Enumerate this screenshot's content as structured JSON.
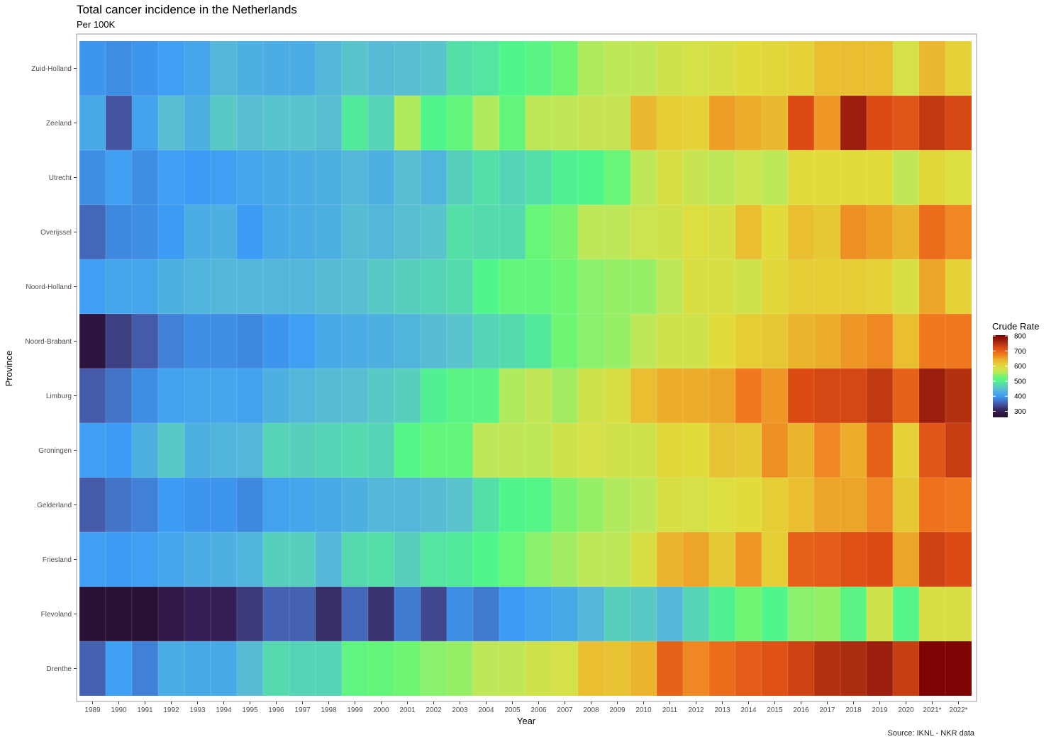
{
  "chart_data": {
    "type": "heatmap",
    "title": "Total cancer incidence in the Netherlands",
    "subtitle": "Per 100K",
    "xlabel": "Year",
    "ylabel": "Province",
    "caption": "Source: IKNL - NKR data",
    "legend": {
      "title": "Crude Rate",
      "position": "right",
      "ticks": [
        300,
        400,
        500,
        600,
        700,
        800
      ],
      "min": 260,
      "max": 805
    },
    "x": [
      "1989",
      "1990",
      "1991",
      "1992",
      "1993",
      "1994",
      "1995",
      "1996",
      "1997",
      "1998",
      "1999",
      "2000",
      "2001",
      "2002",
      "2003",
      "2004",
      "2005",
      "2006",
      "2007",
      "2008",
      "2009",
      "2010",
      "2011",
      "2012",
      "2013",
      "2014",
      "2015",
      "2016",
      "2017",
      "2018",
      "2019",
      "2020",
      "2021*",
      "2022*"
    ],
    "y": [
      "Zuid-Holland",
      "Zeeland",
      "Utrecht",
      "Overijssel",
      "Noord-Holland",
      "Noord-Brabant",
      "Limburg",
      "Groningen",
      "Gelderland",
      "Friesland",
      "Flevoland",
      "Drenthe"
    ],
    "values": [
      [
        395,
        390,
        395,
        405,
        415,
        440,
        430,
        425,
        425,
        440,
        455,
        445,
        450,
        455,
        480,
        485,
        500,
        510,
        530,
        555,
        560,
        565,
        580,
        585,
        590,
        600,
        605,
        610,
        630,
        630,
        630,
        585,
        635,
        610
      ],
      [
        420,
        345,
        410,
        450,
        430,
        460,
        450,
        455,
        455,
        450,
        490,
        470,
        555,
        500,
        520,
        555,
        520,
        560,
        565,
        570,
        570,
        635,
        615,
        610,
        655,
        645,
        635,
        720,
        660,
        770,
        720,
        710,
        740,
        725
      ],
      [
        390,
        405,
        390,
        405,
        400,
        405,
        415,
        420,
        425,
        430,
        440,
        430,
        450,
        435,
        465,
        480,
        470,
        480,
        495,
        500,
        525,
        560,
        590,
        570,
        560,
        575,
        560,
        600,
        600,
        600,
        600,
        565,
        605,
        595
      ],
      [
        360,
        385,
        390,
        400,
        425,
        430,
        400,
        420,
        425,
        430,
        445,
        440,
        450,
        455,
        480,
        475,
        475,
        525,
        535,
        560,
        560,
        575,
        580,
        595,
        590,
        630,
        600,
        630,
        620,
        665,
        655,
        640,
        690,
        670
      ],
      [
        405,
        415,
        415,
        430,
        435,
        440,
        440,
        440,
        440,
        445,
        450,
        460,
        465,
        470,
        475,
        500,
        520,
        520,
        530,
        540,
        545,
        545,
        560,
        590,
        590,
        580,
        605,
        615,
        615,
        615,
        610,
        590,
        650,
        610
      ],
      [
        280,
        330,
        350,
        380,
        390,
        390,
        385,
        395,
        405,
        420,
        425,
        430,
        435,
        445,
        455,
        470,
        475,
        490,
        530,
        540,
        545,
        560,
        580,
        580,
        600,
        615,
        620,
        640,
        645,
        660,
        670,
        630,
        680,
        680
      ],
      [
        350,
        370,
        390,
        410,
        415,
        415,
        410,
        430,
        440,
        445,
        450,
        460,
        465,
        495,
        510,
        510,
        555,
        565,
        550,
        580,
        590,
        630,
        645,
        645,
        650,
        680,
        660,
        720,
        725,
        725,
        740,
        700,
        770,
        750
      ],
      [
        405,
        400,
        430,
        460,
        430,
        435,
        440,
        470,
        465,
        470,
        475,
        470,
        505,
        520,
        520,
        560,
        565,
        560,
        580,
        585,
        580,
        580,
        605,
        600,
        625,
        620,
        665,
        640,
        670,
        645,
        700,
        610,
        710,
        735
      ],
      [
        350,
        370,
        380,
        400,
        395,
        395,
        385,
        410,
        415,
        420,
        430,
        440,
        440,
        445,
        455,
        480,
        500,
        505,
        535,
        545,
        555,
        560,
        590,
        585,
        595,
        600,
        615,
        630,
        650,
        650,
        670,
        620,
        685,
        680
      ],
      [
        405,
        400,
        405,
        415,
        425,
        430,
        435,
        465,
        465,
        440,
        475,
        480,
        465,
        485,
        490,
        500,
        525,
        540,
        550,
        560,
        560,
        590,
        640,
        650,
        620,
        660,
        615,
        700,
        705,
        715,
        720,
        650,
        730,
        720
      ],
      [
        265,
        265,
        265,
        295,
        305,
        305,
        325,
        355,
        355,
        315,
        360,
        320,
        375,
        335,
        390,
        375,
        400,
        410,
        420,
        440,
        465,
        460,
        440,
        470,
        495,
        530,
        500,
        540,
        545,
        510,
        580,
        505,
        590,
        590
      ],
      [
        355,
        405,
        380,
        425,
        420,
        420,
        445,
        475,
        470,
        470,
        515,
        520,
        530,
        540,
        545,
        560,
        565,
        580,
        585,
        630,
        625,
        640,
        700,
        670,
        690,
        705,
        715,
        730,
        750,
        755,
        770,
        735,
        800,
        800
      ]
    ]
  }
}
